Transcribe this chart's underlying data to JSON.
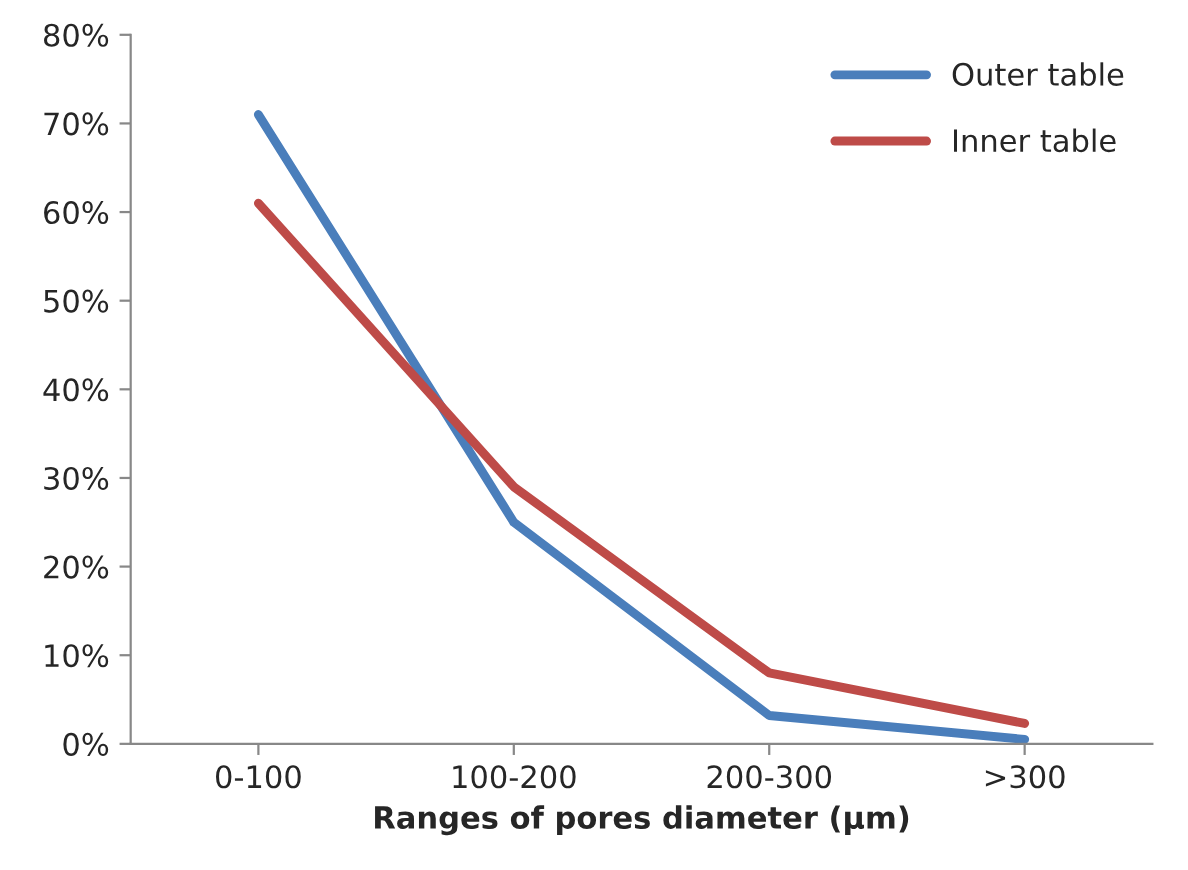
{
  "chart_data": {
    "type": "line",
    "xlabel": "Ranges of pores diameter (µm)",
    "categories": [
      "0-100",
      "100-200",
      "200-300",
      ">300"
    ],
    "series": [
      {
        "name": "Outer table",
        "color": "#4a7ebb",
        "values": [
          71,
          25,
          3.2,
          0.5
        ]
      },
      {
        "name": "Inner table",
        "color": "#be4b48",
        "values": [
          61,
          29,
          8,
          2.3
        ]
      }
    ],
    "ylim": [
      0,
      80
    ],
    "yticks": [
      {
        "value": 0,
        "label": "0%"
      },
      {
        "value": 10,
        "label": "10%"
      },
      {
        "value": 20,
        "label": "20%"
      },
      {
        "value": 30,
        "label": "30%"
      },
      {
        "value": 40,
        "label": "40%"
      },
      {
        "value": 50,
        "label": "50%"
      },
      {
        "value": 60,
        "label": "60%"
      },
      {
        "value": 70,
        "label": "70%"
      },
      {
        "value": 80,
        "label": "80%"
      }
    ],
    "grid": false,
    "legend": "top right",
    "marker": "none",
    "line_style": "solid"
  }
}
